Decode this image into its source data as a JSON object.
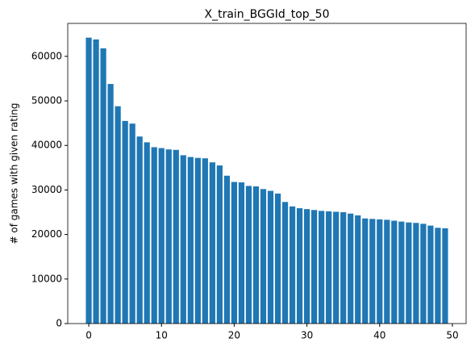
{
  "chart_data": {
    "type": "bar",
    "title": "X_train_BGGId_top_50",
    "ylabel": "# of games with given rating",
    "x": [
      0,
      1,
      2,
      3,
      4,
      5,
      6,
      7,
      8,
      9,
      10,
      11,
      12,
      13,
      14,
      15,
      16,
      17,
      18,
      19,
      20,
      21,
      22,
      23,
      24,
      25,
      26,
      27,
      28,
      29,
      30,
      31,
      32,
      33,
      34,
      35,
      36,
      37,
      38,
      39,
      40,
      41,
      42,
      43,
      44,
      45,
      46,
      47,
      48,
      49
    ],
    "values": [
      64200,
      63800,
      61800,
      53800,
      48800,
      45500,
      44900,
      42000,
      40700,
      39600,
      39400,
      39100,
      39000,
      37800,
      37400,
      37200,
      37100,
      36200,
      35500,
      33200,
      31800,
      31700,
      30900,
      30800,
      30200,
      29800,
      29200,
      27300,
      26300,
      25900,
      25700,
      25500,
      25300,
      25200,
      25100,
      25000,
      24700,
      24300,
      23600,
      23500,
      23400,
      23300,
      23100,
      22900,
      22700,
      22600,
      22400,
      22000,
      21500,
      21400
    ],
    "color": "#1f77b4",
    "xlim": [
      -2.89,
      51.89
    ],
    "xticks": [
      0,
      10,
      20,
      30,
      40,
      50
    ],
    "ylim": [
      0,
      67400
    ],
    "yticks": [
      0,
      10000,
      20000,
      30000,
      40000,
      50000,
      60000
    ],
    "grid": false
  }
}
